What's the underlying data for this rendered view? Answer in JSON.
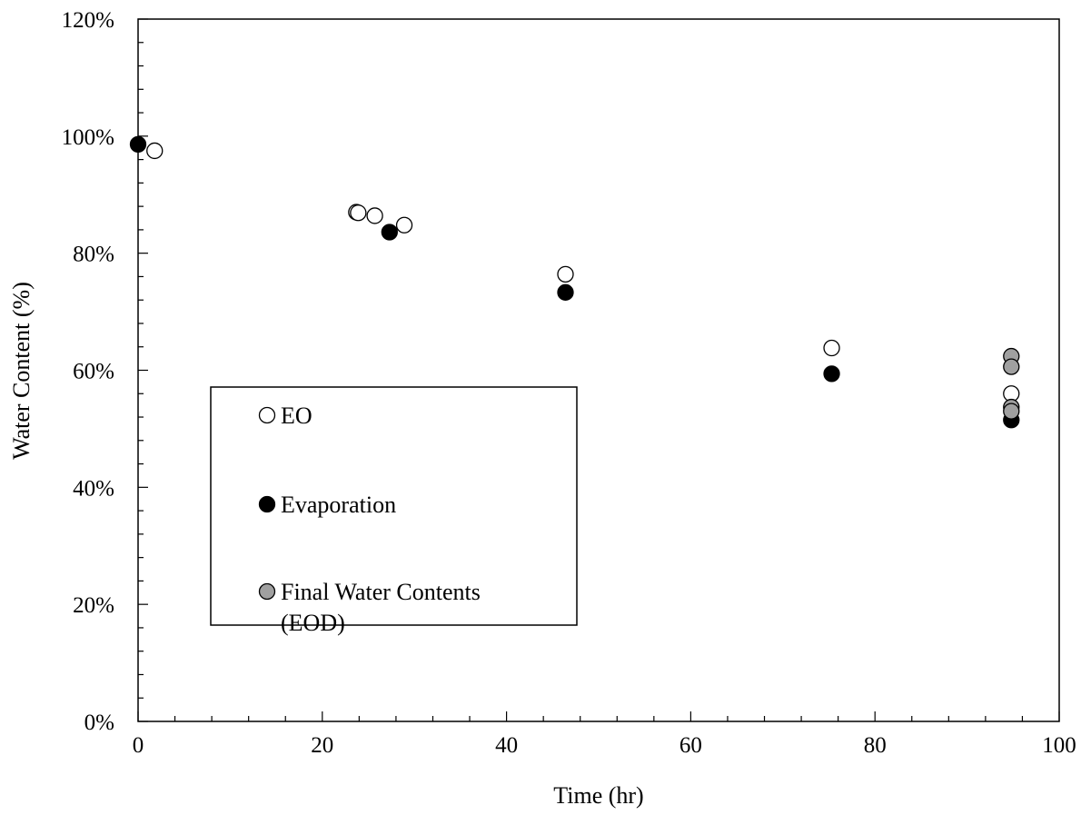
{
  "chart_data": {
    "type": "scatter",
    "xlabel": "Time (hr)",
    "ylabel": "Water Content (%)",
    "xlim": [
      0,
      100
    ],
    "ylim": [
      0,
      1.2
    ],
    "x_ticks": [
      0,
      20,
      40,
      60,
      80,
      100
    ],
    "y_ticks": [
      0,
      0.2,
      0.4,
      0.6,
      0.8,
      1.0,
      1.2
    ],
    "x_tick_labels": [
      "0",
      "20",
      "40",
      "60",
      "80",
      "100"
    ],
    "y_tick_labels": [
      "0%",
      "20%",
      "40%",
      "60%",
      "80%",
      "100%",
      "120%"
    ],
    "grid": false,
    "legend_position": "center-left",
    "series": [
      {
        "name": "EO",
        "fill": "#ffffff",
        "points": [
          [
            1.8,
            0.975
          ],
          [
            23.7,
            0.87
          ],
          [
            23.9,
            0.869
          ],
          [
            25.7,
            0.864
          ],
          [
            28.9,
            0.848
          ],
          [
            46.4,
            0.764
          ],
          [
            75.3,
            0.638
          ],
          [
            94.8,
            0.56
          ]
        ]
      },
      {
        "name": "Evaporation",
        "fill": "#000000",
        "points": [
          [
            0.0,
            0.986
          ],
          [
            27.3,
            0.836
          ],
          [
            46.4,
            0.733
          ],
          [
            75.3,
            0.594
          ],
          [
            94.8,
            0.515
          ]
        ]
      },
      {
        "name": "Final Water Contents (EOD)",
        "fill": "#a0a0a0",
        "points": [
          [
            94.8,
            0.624
          ],
          [
            94.8,
            0.606
          ],
          [
            94.8,
            0.537
          ],
          [
            94.8,
            0.53
          ]
        ]
      }
    ],
    "legend": {
      "items": [
        {
          "lines": [
            "EO"
          ]
        },
        {
          "lines": [
            "Evaporation"
          ]
        },
        {
          "lines": [
            "Final Water Contents",
            "(EOD)"
          ]
        }
      ]
    }
  }
}
